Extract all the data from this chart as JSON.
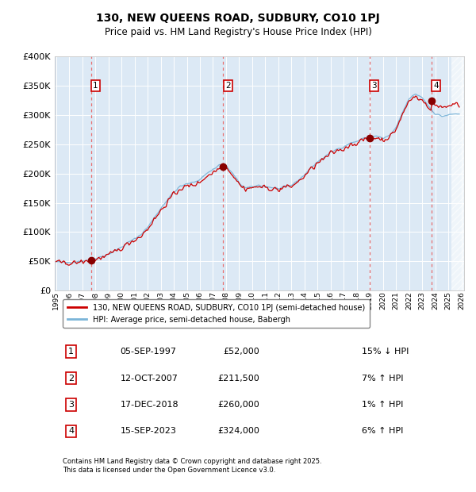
{
  "title": "130, NEW QUEENS ROAD, SUDBURY, CO10 1PJ",
  "subtitle": "Price paid vs. HM Land Registry's House Price Index (HPI)",
  "ylim": [
    0,
    400000
  ],
  "yticks": [
    0,
    50000,
    100000,
    150000,
    200000,
    250000,
    300000,
    350000,
    400000
  ],
  "ytick_labels": [
    "£0",
    "£50K",
    "£100K",
    "£150K",
    "£200K",
    "£250K",
    "£300K",
    "£350K",
    "£400K"
  ],
  "xlim_start": 1994.9,
  "xlim_end": 2026.2,
  "background_color": "#dce9f5",
  "grid_color": "#ffffff",
  "sale_dates": [
    1997.68,
    2007.78,
    2018.96,
    2023.71
  ],
  "sale_prices": [
    52000,
    211500,
    260000,
    324000
  ],
  "sale_labels": [
    "1",
    "2",
    "3",
    "4"
  ],
  "hpi_line_color": "#7ab4d8",
  "price_line_color": "#cc0000",
  "sale_marker_color": "#880000",
  "vline_color": "#e87070",
  "legend_label_price": "130, NEW QUEENS ROAD, SUDBURY, CO10 1PJ (semi-detached house)",
  "legend_label_hpi": "HPI: Average price, semi-detached house, Babergh",
  "table_rows": [
    [
      "1",
      "05-SEP-1997",
      "£52,000",
      "15% ↓ HPI"
    ],
    [
      "2",
      "12-OCT-2007",
      "£211,500",
      "7% ↑ HPI"
    ],
    [
      "3",
      "17-DEC-2018",
      "£260,000",
      "1% ↑ HPI"
    ],
    [
      "4",
      "15-SEP-2023",
      "£324,000",
      "6% ↑ HPI"
    ]
  ],
  "footnote": "Contains HM Land Registry data © Crown copyright and database right 2025.\nThis data is licensed under the Open Government Licence v3.0."
}
